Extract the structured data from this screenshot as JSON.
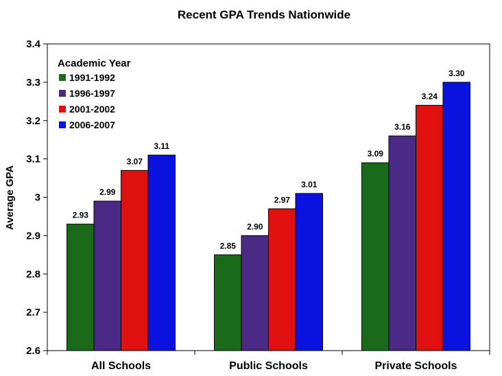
{
  "chart_data": {
    "type": "bar",
    "title": "Recent GPA Trends Nationwide",
    "xlabel": "",
    "ylabel": "Average GPA",
    "ylim": [
      2.6,
      3.4
    ],
    "yticks": [
      2.6,
      2.7,
      2.8,
      2.9,
      3,
      3.1,
      3.2,
      3.3,
      3.4
    ],
    "ytick_labels": [
      "2.6",
      "2.7",
      "2.8",
      "2.9",
      "3",
      "3.1",
      "3.2",
      "3.3",
      "3.4"
    ],
    "grid": false,
    "categories": [
      "All Schools",
      "Public Schools",
      "Private Schools"
    ],
    "legend_title": "Academic Year",
    "legend_position": "top-left",
    "series": [
      {
        "name": "1991-1992",
        "color": "#1a6a1a",
        "values": [
          2.93,
          2.85,
          3.09
        ],
        "labels": [
          "2.93",
          "2.85",
          "3.09"
        ]
      },
      {
        "name": "1996-1997",
        "color": "#4b2a86",
        "values": [
          2.99,
          2.9,
          3.16
        ],
        "labels": [
          "2.99",
          "2.90",
          "3.16"
        ]
      },
      {
        "name": "2001-2002",
        "color": "#e01010",
        "values": [
          3.07,
          2.97,
          3.24
        ],
        "labels": [
          "3.07",
          "2.97",
          "3.24"
        ]
      },
      {
        "name": "2006-2007",
        "color": "#0a12e0",
        "values": [
          3.11,
          3.01,
          3.3
        ],
        "labels": [
          "3.11",
          "3.01",
          "3.30"
        ]
      }
    ]
  }
}
